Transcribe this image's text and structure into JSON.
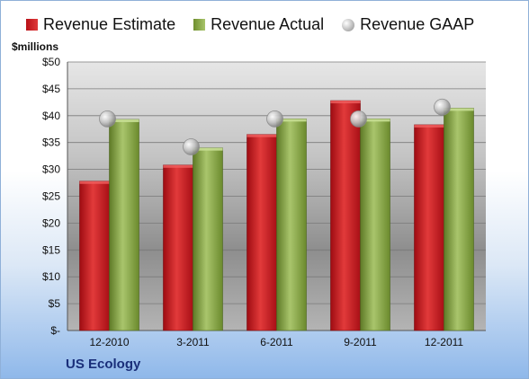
{
  "legend": {
    "estimate": "Revenue Estimate",
    "actual": "Revenue Actual",
    "gaap": "Revenue GAAP"
  },
  "units_label": "$millions",
  "company": "US Ecology",
  "colors": {
    "estimate": "#c8141c",
    "actual": "#8fb04a",
    "gaap": "#c0c0c0"
  },
  "chart_data": {
    "type": "bar",
    "title": "",
    "xlabel": "",
    "ylabel": "$millions",
    "categories": [
      "12-2010",
      "3-2011",
      "6-2011",
      "9-2011",
      "12-2011"
    ],
    "series": [
      {
        "name": "Revenue Estimate",
        "kind": "bar",
        "values": [
          27.8,
          30.8,
          36.5,
          42.8,
          38.3
        ]
      },
      {
        "name": "Revenue Actual",
        "kind": "bar",
        "values": [
          39.3,
          34.0,
          39.4,
          39.4,
          41.4
        ]
      },
      {
        "name": "Revenue GAAP",
        "kind": "marker",
        "values": [
          39.4,
          34.2,
          39.4,
          39.4,
          41.6
        ]
      }
    ],
    "ylim": [
      0,
      50
    ],
    "yticks": [
      0,
      5,
      10,
      15,
      20,
      25,
      30,
      35,
      40,
      45,
      50
    ],
    "ytick_labels": [
      "$-",
      "$5",
      "$10",
      "$15",
      "$20",
      "$25",
      "$30",
      "$35",
      "$40",
      "$45",
      "$50"
    ],
    "grid": true,
    "legend_position": "top"
  }
}
